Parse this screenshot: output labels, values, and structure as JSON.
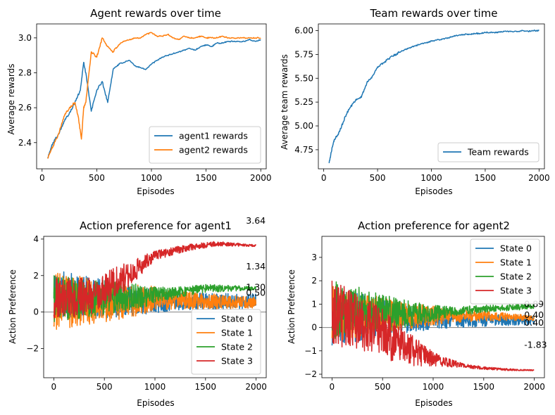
{
  "colors": {
    "blue": "#1f77b4",
    "orange": "#ff7f0e",
    "green": "#2ca02c",
    "red": "#d62728"
  },
  "chart_data": [
    {
      "type": "line",
      "title": "Agent rewards over time",
      "xlabel": "Episodes",
      "ylabel": "Average rewards",
      "xlim": [
        -50,
        2050
      ],
      "ylim": [
        2.25,
        3.08
      ],
      "xticks": [
        0,
        500,
        1000,
        1500,
        2000
      ],
      "yticks": [
        2.4,
        2.6,
        2.8,
        3.0
      ],
      "ytick_labels": [
        "2.4",
        "2.6",
        "2.8",
        "3.0"
      ],
      "legend_position": "lower right",
      "series": [
        {
          "name": "agent1 rewards",
          "color": "blue",
          "x": [
            50,
            100,
            150,
            200,
            250,
            300,
            350,
            380,
            400,
            450,
            500,
            550,
            600,
            650,
            700,
            750,
            800,
            850,
            900,
            950,
            1000,
            1050,
            1100,
            1150,
            1200,
            1250,
            1300,
            1350,
            1400,
            1450,
            1500,
            1550,
            1600,
            1650,
            1700,
            1750,
            1800,
            1850,
            1900,
            1950,
            2000
          ],
          "y": [
            2.31,
            2.4,
            2.45,
            2.52,
            2.57,
            2.63,
            2.7,
            2.86,
            2.8,
            2.58,
            2.7,
            2.75,
            2.63,
            2.82,
            2.85,
            2.86,
            2.87,
            2.84,
            2.83,
            2.82,
            2.85,
            2.87,
            2.89,
            2.9,
            2.91,
            2.92,
            2.93,
            2.94,
            2.93,
            2.95,
            2.96,
            2.95,
            2.97,
            2.97,
            2.98,
            2.98,
            2.98,
            2.98,
            2.99,
            2.98,
            2.99
          ]
        },
        {
          "name": "agent2 rewards",
          "color": "orange",
          "x": [
            50,
            100,
            150,
            200,
            250,
            300,
            330,
            360,
            380,
            400,
            450,
            500,
            550,
            600,
            650,
            700,
            750,
            800,
            850,
            900,
            950,
            1000,
            1050,
            1100,
            1150,
            1200,
            1250,
            1300,
            1350,
            1400,
            1450,
            1500,
            1550,
            1600,
            1650,
            1700,
            1750,
            1800,
            1850,
            1900,
            1950,
            2000
          ],
          "y": [
            2.31,
            2.38,
            2.45,
            2.55,
            2.6,
            2.63,
            2.55,
            2.42,
            2.6,
            2.63,
            2.92,
            2.89,
            3.0,
            2.95,
            2.92,
            2.96,
            2.98,
            2.99,
            3.0,
            3.0,
            3.02,
            3.03,
            3.01,
            3.01,
            3.02,
            3.0,
            2.99,
            3.01,
            3.0,
            3.0,
            3.01,
            3.0,
            3.0,
            3.0,
            3.01,
            3.0,
            3.0,
            3.0,
            3.0,
            3.0,
            3.0,
            3.0
          ]
        }
      ]
    },
    {
      "type": "line",
      "title": "Team rewards over time",
      "xlabel": "Episodes",
      "ylabel": "Average team rewards",
      "xlim": [
        -50,
        2050
      ],
      "ylim": [
        4.55,
        6.07
      ],
      "xticks": [
        0,
        500,
        1000,
        1500,
        2000
      ],
      "yticks": [
        4.75,
        5.0,
        5.25,
        5.5,
        5.75,
        6.0
      ],
      "ytick_labels": [
        "4.75",
        "5.00",
        "5.25",
        "5.50",
        "5.75",
        "6.00"
      ],
      "legend_position": "lower right",
      "series": [
        {
          "name": "Team rewards",
          "color": "blue",
          "x": [
            50,
            80,
            100,
            130,
            150,
            200,
            250,
            300,
            350,
            400,
            450,
            500,
            550,
            600,
            650,
            700,
            750,
            800,
            850,
            900,
            950,
            1000,
            1050,
            1100,
            1150,
            1200,
            1250,
            1300,
            1350,
            1400,
            1450,
            1500,
            1550,
            1600,
            1650,
            1700,
            1750,
            1800,
            1850,
            1900,
            1950,
            2000
          ],
          "y": [
            4.61,
            4.78,
            4.86,
            4.9,
            4.95,
            5.1,
            5.2,
            5.28,
            5.3,
            5.45,
            5.52,
            5.62,
            5.66,
            5.7,
            5.74,
            5.77,
            5.8,
            5.82,
            5.84,
            5.86,
            5.87,
            5.89,
            5.9,
            5.91,
            5.92,
            5.94,
            5.95,
            5.96,
            5.96,
            5.97,
            5.97,
            5.98,
            5.98,
            5.98,
            5.99,
            5.99,
            5.99,
            5.99,
            6.0,
            5.99,
            6.0,
            6.0
          ]
        }
      ]
    },
    {
      "type": "line",
      "title": "Action preference for agent1",
      "xlabel": "Episodes",
      "ylabel": "Action Preference",
      "xlim": [
        -100,
        2100
      ],
      "ylim": [
        -3.6,
        4.15
      ],
      "xticks": [
        0,
        500,
        1000,
        1500,
        2000
      ],
      "yticks": [
        -2,
        0,
        2,
        4
      ],
      "ytick_labels": [
        "−2",
        "0",
        "2",
        "4"
      ],
      "hline": 0,
      "legend_position": "lower right",
      "series": [
        {
          "name": "State 0",
          "color": "blue",
          "base": [
            [
              0,
              1.0
            ],
            [
              300,
              0.8
            ],
            [
              800,
              0.6
            ],
            [
              1300,
              0.6
            ],
            [
              2000,
              0.6
            ]
          ],
          "noise": [
            [
              0,
              1.4
            ],
            [
              700,
              0.9
            ],
            [
              1200,
              0.5
            ],
            [
              2000,
              0.4
            ]
          ],
          "seed": 11
        },
        {
          "name": "State 1",
          "color": "orange",
          "base": [
            [
              0,
              0.6
            ],
            [
              500,
              0.6
            ],
            [
              1000,
              0.7
            ],
            [
              1500,
              0.6
            ],
            [
              2000,
              0.5
            ]
          ],
          "noise": [
            [
              0,
              1.6
            ],
            [
              700,
              1.0
            ],
            [
              1200,
              0.5
            ],
            [
              2000,
              0.3
            ]
          ],
          "seed": 23
        },
        {
          "name": "State 2",
          "color": "green",
          "base": [
            [
              0,
              0.7
            ],
            [
              500,
              0.8
            ],
            [
              1000,
              0.9
            ],
            [
              1500,
              1.3
            ],
            [
              2000,
              1.3
            ]
          ],
          "noise": [
            [
              0,
              1.3
            ],
            [
              700,
              0.8
            ],
            [
              1200,
              0.3
            ],
            [
              2000,
              0.1
            ]
          ],
          "seed": 37
        },
        {
          "name": "State 3",
          "color": "red",
          "base": [
            [
              0,
              0.7
            ],
            [
              400,
              0.9
            ],
            [
              800,
              2.3
            ],
            [
              1000,
              3.1
            ],
            [
              1300,
              3.5
            ],
            [
              1600,
              3.75
            ],
            [
              2000,
              3.64
            ]
          ],
          "noise": [
            [
              0,
              1.2
            ],
            [
              700,
              0.8
            ],
            [
              1000,
              0.25
            ],
            [
              2000,
              0.05
            ]
          ],
          "seed": 51
        }
      ],
      "annotations": [
        {
          "text": "3.64",
          "x": 1900,
          "y": 5.0
        },
        {
          "text": "1.34",
          "x": 1900,
          "y": 2.5
        },
        {
          "text": "1.30",
          "x": 1900,
          "y": 1.35
        },
        {
          "text": "0.50",
          "x": 1900,
          "y": 1.05
        }
      ]
    },
    {
      "type": "line",
      "title": "Action preference for agent2",
      "xlabel": "Episodes",
      "ylabel": "Action Preference",
      "xlim": [
        -100,
        2100
      ],
      "ylim": [
        -2.15,
        3.9
      ],
      "xticks": [
        0,
        500,
        1000,
        1500,
        2000
      ],
      "yticks": [
        -2,
        -1,
        0,
        1,
        2,
        3
      ],
      "ytick_labels": [
        "−2",
        "−1",
        "0",
        "1",
        "2",
        "3"
      ],
      "hline": 0,
      "legend_position": "upper right",
      "series": [
        {
          "name": "State 0",
          "color": "blue",
          "base": [
            [
              0,
              0.5
            ],
            [
              500,
              0.4
            ],
            [
              1000,
              0.3
            ],
            [
              1500,
              0.3
            ],
            [
              2000,
              0.3
            ]
          ],
          "noise": [
            [
              0,
              1.3
            ],
            [
              700,
              0.6
            ],
            [
              1200,
              0.3
            ],
            [
              2000,
              0.2
            ]
          ],
          "seed": 7
        },
        {
          "name": "State 1",
          "color": "orange",
          "base": [
            [
              0,
              0.6
            ],
            [
              500,
              0.5
            ],
            [
              1000,
              0.5
            ],
            [
              1500,
              0.5
            ],
            [
              2000,
              0.4
            ]
          ],
          "noise": [
            [
              0,
              1.2
            ],
            [
              700,
              0.6
            ],
            [
              1200,
              0.3
            ],
            [
              2000,
              0.1
            ]
          ],
          "seed": 19
        },
        {
          "name": "State 2",
          "color": "green",
          "base": [
            [
              0,
              0.8
            ],
            [
              500,
              0.6
            ],
            [
              1000,
              0.6
            ],
            [
              1500,
              0.8
            ],
            [
              2000,
              0.9
            ]
          ],
          "noise": [
            [
              0,
              1.3
            ],
            [
              700,
              0.6
            ],
            [
              1200,
              0.2
            ],
            [
              2000,
              0.1
            ]
          ],
          "seed": 29
        },
        {
          "name": "State 3",
          "color": "red",
          "base": [
            [
              0,
              0.6
            ],
            [
              300,
              0.2
            ],
            [
              600,
              -0.5
            ],
            [
              800,
              -1.0
            ],
            [
              1000,
              -1.35
            ],
            [
              1200,
              -1.55
            ],
            [
              1400,
              -1.7
            ],
            [
              1700,
              -1.8
            ],
            [
              2000,
              -1.83
            ]
          ],
          "noise": [
            [
              0,
              1.4
            ],
            [
              600,
              1.0
            ],
            [
              1000,
              0.3
            ],
            [
              1300,
              0.08
            ],
            [
              2000,
              0.02
            ]
          ],
          "seed": 43
        }
      ],
      "annotations": [
        {
          "text": "0.89",
          "x": 1900,
          "y": 1.0
        },
        {
          "text": "0.40",
          "x": 1900,
          "y": 0.53
        },
        {
          "text": "0.40",
          "x": 1900,
          "y": 0.2
        },
        {
          "text": "-1.83",
          "x": 1900,
          "y": -0.75
        }
      ]
    }
  ]
}
